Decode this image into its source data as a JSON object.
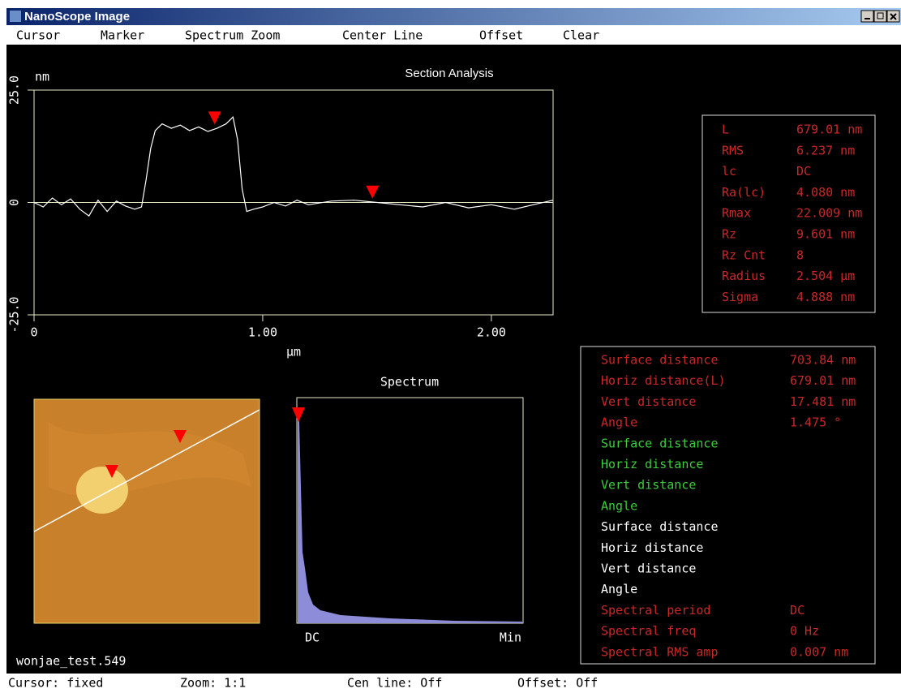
{
  "window": {
    "title": "NanoScope Image"
  },
  "menu": [
    "Cursor",
    "Marker",
    "Spectrum Zoom",
    "Center Line",
    "Offset",
    "Clear"
  ],
  "section": {
    "title": "Section Analysis",
    "y_unit": "nm",
    "x_unit": "µm",
    "ylim": [
      -25,
      25
    ],
    "yticks": [
      {
        "value": 25,
        "label": "25.0"
      },
      0,
      {
        "value": -25,
        "label": "-25.0"
      }
    ],
    "xlim": [
      0,
      2.27
    ],
    "xticks": [
      0,
      {
        "value": 1,
        "label": "1.00"
      },
      {
        "value": 2,
        "label": "2.00"
      }
    ],
    "profile": {
      "x": [
        0,
        0.04,
        0.08,
        0.12,
        0.16,
        0.2,
        0.24,
        0.28,
        0.32,
        0.36,
        0.4,
        0.44,
        0.47,
        0.49,
        0.51,
        0.53,
        0.56,
        0.6,
        0.64,
        0.68,
        0.72,
        0.76,
        0.8,
        0.84,
        0.87,
        0.89,
        0.91,
        0.93,
        0.96,
        1.0,
        1.05,
        1.1,
        1.15,
        1.2,
        1.3,
        1.4,
        1.5,
        1.6,
        1.7,
        1.8,
        1.9,
        2.0,
        2.1,
        2.2,
        2.27
      ],
      "y": [
        0,
        -1,
        1,
        -0.5,
        0.8,
        -1.5,
        -3,
        0.5,
        -2,
        0.3,
        -0.8,
        -1.5,
        -1,
        5,
        12,
        16,
        17.5,
        16.5,
        17.2,
        16,
        16.8,
        15.8,
        16.5,
        17.5,
        19,
        14,
        3,
        -2,
        -1.5,
        -1,
        0,
        -0.8,
        0.5,
        -0.5,
        0.3,
        0.5,
        0,
        -0.5,
        -1,
        0,
        -1.2,
        -0.5,
        -1.5,
        -0.3,
        0.5
      ]
    },
    "markers": {
      "x": [
        0.79,
        1.48
      ],
      "y": [
        17,
        0.5
      ]
    }
  },
  "roughness": {
    "rows": [
      [
        "L",
        "679.01 nm"
      ],
      [
        "RMS",
        "6.237 nm"
      ],
      [
        "lc",
        "DC"
      ],
      [
        "Ra(lc)",
        "4.080 nm"
      ],
      [
        "Rmax",
        "22.009 nm"
      ],
      [
        "Rz",
        "9.601 nm"
      ],
      [
        "Rz Cnt",
        "8"
      ],
      [
        "Radius",
        "2.504 µm"
      ],
      [
        "Sigma",
        "4.888 nm"
      ]
    ]
  },
  "measurements": {
    "rows": [
      {
        "label": "Surface distance",
        "value": "703.84 nm",
        "color": "#c82828"
      },
      {
        "label": "Horiz distance(L)",
        "value": "679.01 nm",
        "color": "#c82828"
      },
      {
        "label": "Vert distance",
        "value": "17.481 nm",
        "color": "#c82828"
      },
      {
        "label": "Angle",
        "value": "1.475 °",
        "color": "#c82828"
      },
      {
        "label": "Surface distance",
        "color": "#3ccc3c"
      },
      {
        "label": "Horiz distance",
        "color": "#3ccc3c"
      },
      {
        "label": "Vert distance",
        "color": "#3ccc3c"
      },
      {
        "label": "Angle",
        "color": "#3ccc3c"
      },
      {
        "label": "Surface distance",
        "color": "#ffffff"
      },
      {
        "label": "Horiz distance",
        "color": "#ffffff"
      },
      {
        "label": "Vert distance",
        "color": "#ffffff"
      },
      {
        "label": "Angle",
        "color": "#ffffff"
      },
      {
        "label": "Spectral period",
        "value": "DC",
        "color": "#c82828"
      },
      {
        "label": "Spectral freq",
        "value": "0 Hz",
        "color": "#c82828"
      },
      {
        "label": "Spectral RMS amp",
        "value": "0.007 nm",
        "color": "#c82828"
      }
    ]
  },
  "spectrum": {
    "title": "Spectrum",
    "x_start": "DC",
    "x_end": "Min"
  },
  "image": {
    "filename": "wonjae_test.549"
  },
  "status": [
    "Cursor: fixed",
    "Zoom: 1:1",
    "Cen line: Off",
    "Offset: Off"
  ]
}
